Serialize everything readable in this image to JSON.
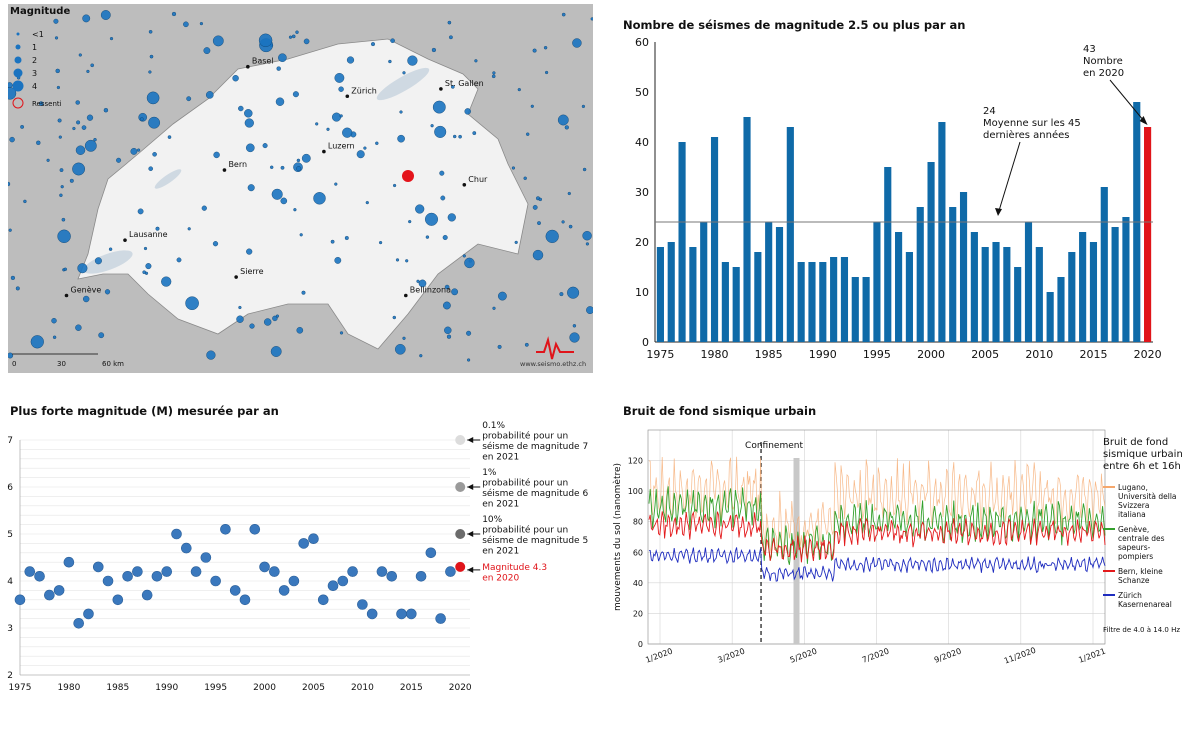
{
  "map": {
    "legend_title": "Magnitude",
    "legend_items": [
      {
        "label": "<1",
        "r": 1.5
      },
      {
        "label": "1",
        "r": 2.5
      },
      {
        "label": "2",
        "r": 3.5
      },
      {
        "label": "3",
        "r": 4.5
      },
      {
        "label": "4",
        "r": 5.5
      }
    ],
    "felt_label": "Ressenti",
    "cities": [
      {
        "name": "Basel",
        "lx": 0.41,
        "ly": 0.17
      },
      {
        "name": "Zürich",
        "lx": 0.58,
        "ly": 0.25
      },
      {
        "name": "St. Gallen",
        "lx": 0.74,
        "ly": 0.23
      },
      {
        "name": "Luzern",
        "lx": 0.54,
        "ly": 0.4
      },
      {
        "name": "Bern",
        "lx": 0.37,
        "ly": 0.45
      },
      {
        "name": "Chur",
        "lx": 0.78,
        "ly": 0.49
      },
      {
        "name": "Lausanne",
        "lx": 0.2,
        "ly": 0.64
      },
      {
        "name": "Sierre",
        "lx": 0.39,
        "ly": 0.74
      },
      {
        "name": "Genève",
        "lx": 0.1,
        "ly": 0.79
      },
      {
        "name": "Bellinzona",
        "lx": 0.68,
        "ly": 0.79
      }
    ],
    "scale_labels": [
      "0",
      "30",
      "60 km"
    ],
    "credit": "www.seismo.ethz.ch",
    "point_color": "#1a73c0",
    "highlight_color": "#e4141b"
  },
  "chart_data": [
    {
      "type": "bar",
      "title": "Nombre de séismes de magnitude 2.5 ou plus par an",
      "xlabel": "",
      "ylabel": "",
      "x": [
        1975,
        1976,
        1977,
        1978,
        1979,
        1980,
        1981,
        1982,
        1983,
        1984,
        1985,
        1986,
        1987,
        1988,
        1989,
        1990,
        1991,
        1992,
        1993,
        1994,
        1995,
        1996,
        1997,
        1998,
        1999,
        2000,
        2001,
        2002,
        2003,
        2004,
        2005,
        2006,
        2007,
        2008,
        2009,
        2010,
        2011,
        2012,
        2013,
        2014,
        2015,
        2016,
        2017,
        2018,
        2019,
        2020
      ],
      "values": [
        19,
        20,
        40,
        19,
        24,
        41,
        16,
        15,
        45,
        18,
        24,
        23,
        43,
        16,
        16,
        16,
        17,
        17,
        13,
        13,
        24,
        35,
        22,
        18,
        27,
        36,
        44,
        27,
        30,
        22,
        19,
        20,
        19,
        15,
        24,
        19,
        10,
        13,
        18,
        22,
        20,
        31,
        23,
        25,
        48,
        43
      ],
      "ylim": [
        0,
        60
      ],
      "yticks": [
        0,
        10,
        20,
        30,
        40,
        50,
        60
      ],
      "xticks": [
        1975,
        1980,
        1985,
        1990,
        1995,
        2000,
        2005,
        2010,
        2015,
        2020
      ],
      "mean_line": 24,
      "bar_color": "#0f6aa8",
      "highlight_color": "#e0141a",
      "annotations": [
        {
          "value": "24",
          "lines": [
            "Moyenne sur les 45",
            "dernières années"
          ]
        },
        {
          "value": "43",
          "lines": [
            "Nombre",
            "en 2020"
          ]
        }
      ]
    },
    {
      "type": "scatter",
      "title": "Plus forte magnitude (M) mesurée par an",
      "xlabel": "",
      "ylabel": "",
      "x": [
        1975,
        1976,
        1977,
        1978,
        1979,
        1980,
        1981,
        1982,
        1983,
        1984,
        1985,
        1986,
        1987,
        1988,
        1989,
        1990,
        1991,
        1992,
        1993,
        1994,
        1995,
        1996,
        1997,
        1998,
        1999,
        2000,
        2001,
        2002,
        2003,
        2004,
        2005,
        2006,
        2007,
        2008,
        2009,
        2010,
        2011,
        2012,
        2013,
        2014,
        2015,
        2016,
        2017,
        2018,
        2019,
        2020
      ],
      "y": [
        3.6,
        4.2,
        4.1,
        3.7,
        3.8,
        4.4,
        3.1,
        3.3,
        4.3,
        4.0,
        3.6,
        4.1,
        4.2,
        3.7,
        4.1,
        4.2,
        5.0,
        4.7,
        4.2,
        4.5,
        4.0,
        5.1,
        3.8,
        3.6,
        5.1,
        4.3,
        4.2,
        3.8,
        4.0,
        4.8,
        4.9,
        3.6,
        3.9,
        4.0,
        4.2,
        3.5,
        3.3,
        4.2,
        4.1,
        3.3,
        3.3,
        4.1,
        4.6,
        3.2,
        4.2,
        4.3
      ],
      "xlim": [
        1975,
        2021
      ],
      "ylim": [
        2,
        7
      ],
      "yticks": [
        2,
        3,
        4,
        5,
        6,
        7
      ],
      "xticks": [
        1975,
        1980,
        1985,
        1990,
        1995,
        2000,
        2005,
        2010,
        2015,
        2020
      ],
      "point_color": "#3a78bd",
      "highlight_color": "#e0141a",
      "probabilities": [
        {
          "m": 7,
          "color": "#dcdcdc",
          "lines": [
            "0.1%",
            "probabilité pour un",
            "séisme de magnitude 7",
            "en 2021"
          ]
        },
        {
          "m": 6,
          "color": "#9a9a9a",
          "lines": [
            "1%",
            "probabilité pour un",
            "séisme de magnitude 6",
            "en 2021"
          ]
        },
        {
          "m": 5,
          "color": "#6b6b6b",
          "lines": [
            "10%",
            "probabilité pour un",
            "séisme de magnitude 5",
            "en 2021"
          ]
        }
      ],
      "highlight_label": [
        "Magnitude 4.3",
        "en 2020"
      ]
    },
    {
      "type": "line",
      "title": "Bruit de fond sismique urbain",
      "ylabel": "mouvements du sol (nanomètre)",
      "xlabel": "",
      "ylim": [
        0,
        140
      ],
      "yticks": [
        0,
        20,
        40,
        60,
        80,
        100,
        120
      ],
      "xticks": [
        "1/2020",
        "3/2020",
        "5/2020",
        "7/2020",
        "9/2020",
        "11/2020",
        "1/2021"
      ],
      "confinement_label": "Confinement",
      "legend_title": [
        "Bruit de fond",
        "sismique urbain",
        "entre 6h et 16h"
      ],
      "filter_note": "Filtre de 4.0 à 14.0 Hz",
      "series": [
        {
          "name": "Lugano, Università della Svizzera italiana",
          "lines": [
            "Lugano,",
            "Università della",
            "Svizzera",
            "italiana"
          ],
          "color": "#f5a76c",
          "levels": {
            "before": 100,
            "lockdown": 77,
            "after": 98
          }
        },
        {
          "name": "Genève, centrale des sapeurs-pompiers",
          "lines": [
            "Genève,",
            "centrale des",
            "sapeurs-",
            "pompiers"
          ],
          "color": "#33a02c",
          "levels": {
            "before": 90,
            "lockdown": 65,
            "after": 80
          }
        },
        {
          "name": "Bern, kleine Schanze",
          "lines": [
            "Bern, kleine",
            "Schanze"
          ],
          "color": "#e31a1c",
          "levels": {
            "before": 78,
            "lockdown": 62,
            "after": 73
          }
        },
        {
          "name": "Zürich Kasernenareal",
          "lines": [
            "Zürich",
            "Kasernenareal"
          ],
          "color": "#1f2dbf",
          "levels": {
            "before": 58,
            "lockdown": 46,
            "after": 52
          }
        }
      ]
    }
  ]
}
